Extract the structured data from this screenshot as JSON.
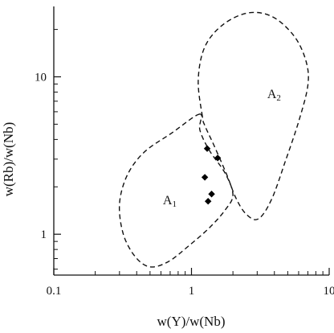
{
  "chart_data": {
    "type": "scatter",
    "title": "",
    "xlabel": "w(Y)/w(Nb)",
    "ylabel": "w(Rb)/w(Nb)",
    "x_scale": "log",
    "y_scale": "log",
    "xlim": [
      0.1,
      10
    ],
    "ylim": [
      0.55,
      28
    ],
    "x_ticks": [
      {
        "value": 0.1,
        "label": "0.1"
      },
      {
        "value": 1,
        "label": "1"
      },
      {
        "value": 10,
        "label": "10"
      }
    ],
    "y_ticks": [
      {
        "value": 1,
        "label": "1"
      },
      {
        "value": 10,
        "label": "10"
      }
    ],
    "grid": false,
    "series": [
      {
        "marker": "diamond",
        "color": "#000000",
        "points": [
          {
            "x": 1.3,
            "y": 3.5
          },
          {
            "x": 1.55,
            "y": 3.05
          },
          {
            "x": 1.25,
            "y": 2.3
          },
          {
            "x": 1.4,
            "y": 1.8
          },
          {
            "x": 1.32,
            "y": 1.62
          }
        ]
      }
    ],
    "fields": [
      {
        "name": "A1",
        "label_main": "A",
        "label_sub": "1",
        "label_pos": {
          "x": 0.62,
          "y": 1.55
        },
        "style": "dashed",
        "outline": [
          {
            "x": 1.15,
            "y": 5.8
          },
          {
            "x": 0.72,
            "y": 4.4
          },
          {
            "x": 0.45,
            "y": 3.3
          },
          {
            "x": 0.34,
            "y": 2.35
          },
          {
            "x": 0.3,
            "y": 1.55
          },
          {
            "x": 0.32,
            "y": 1.0
          },
          {
            "x": 0.39,
            "y": 0.72
          },
          {
            "x": 0.5,
            "y": 0.62
          },
          {
            "x": 0.68,
            "y": 0.67
          },
          {
            "x": 0.95,
            "y": 0.84
          },
          {
            "x": 1.35,
            "y": 1.1
          },
          {
            "x": 1.75,
            "y": 1.42
          },
          {
            "x": 2.0,
            "y": 1.78
          },
          {
            "x": 1.75,
            "y": 2.45
          },
          {
            "x": 1.35,
            "y": 3.4
          },
          {
            "x": 1.15,
            "y": 4.6
          }
        ]
      },
      {
        "name": "A2",
        "label_main": "A",
        "label_sub": "2",
        "label_pos": {
          "x": 3.55,
          "y": 7.3
        },
        "style": "dashed",
        "outline": [
          {
            "x": 1.2,
            "y": 5.6
          },
          {
            "x": 1.12,
            "y": 9.5
          },
          {
            "x": 1.25,
            "y": 15.5
          },
          {
            "x": 1.7,
            "y": 21.5
          },
          {
            "x": 2.6,
            "y": 25.5
          },
          {
            "x": 3.9,
            "y": 24.0
          },
          {
            "x": 5.6,
            "y": 18.0
          },
          {
            "x": 6.8,
            "y": 12.5
          },
          {
            "x": 7.0,
            "y": 8.8
          },
          {
            "x": 6.0,
            "y": 5.2
          },
          {
            "x": 4.8,
            "y": 2.9
          },
          {
            "x": 3.8,
            "y": 1.65
          },
          {
            "x": 3.05,
            "y": 1.25
          },
          {
            "x": 2.5,
            "y": 1.34
          },
          {
            "x": 2.1,
            "y": 1.7
          },
          {
            "x": 1.8,
            "y": 2.4
          },
          {
            "x": 1.45,
            "y": 3.7
          },
          {
            "x": 1.25,
            "y": 4.9
          }
        ]
      }
    ]
  }
}
